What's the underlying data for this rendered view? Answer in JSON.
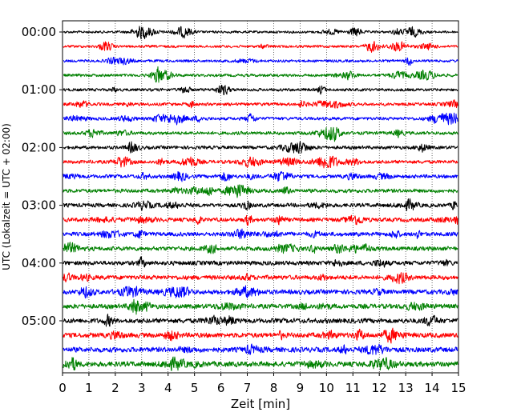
{
  "chart_data": {
    "type": "line",
    "title": "",
    "xlabel": "Zeit  [min]",
    "ylabel": "UTC (Lokalzeit = UTC + 02:00)",
    "xlim": [
      0,
      15
    ],
    "x_ticks": [
      "0",
      "1",
      "2",
      "3",
      "4",
      "5",
      "6",
      "7",
      "8",
      "9",
      "10",
      "11",
      "12",
      "13",
      "14",
      "15"
    ],
    "y_tick_labels": [
      "00:00",
      "01:00",
      "02:00",
      "03:00",
      "04:00",
      "05:00"
    ],
    "trace_interval_min": 15,
    "trace_count": 24,
    "grid": "vertical dotted at each minute",
    "legend": "none",
    "trace_colors": [
      "#000000",
      "#ff0000",
      "#0000ff",
      "#008000"
    ]
  }
}
